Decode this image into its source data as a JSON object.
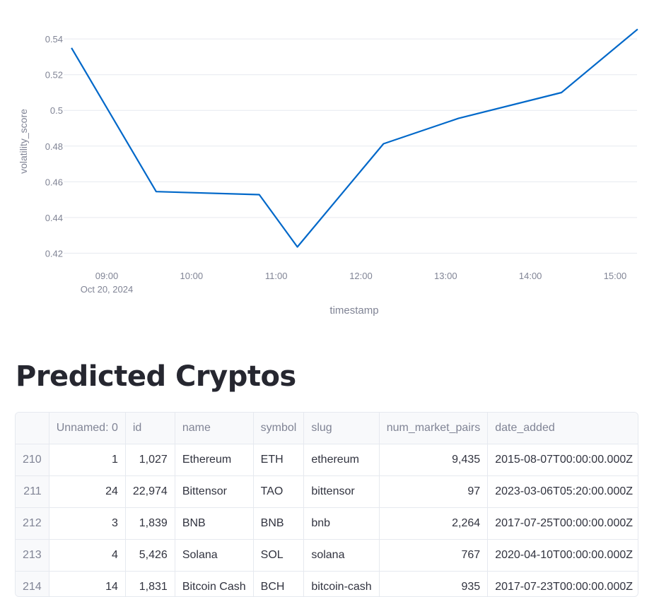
{
  "chart_data": {
    "type": "line",
    "xlabel": "timestamp",
    "ylabel": "volatility_score",
    "x_ticks": [
      "09:00",
      "10:00",
      "11:00",
      "12:00",
      "13:00",
      "14:00",
      "15:00"
    ],
    "x_first_tick_date": "Oct 20, 2024",
    "y_ticks": [
      "0.42",
      "0.44",
      "0.46",
      "0.48",
      "0.5",
      "0.52",
      "0.54"
    ],
    "ylim": [
      0.415,
      0.546
    ],
    "grid": true,
    "line_color": "#0068c9",
    "series": [
      {
        "x": [
          "2024-10-20 08:35",
          "2024-10-20 09:35",
          "2024-10-20 10:48",
          "2024-10-20 10:48",
          "2024-10-20 11:15",
          "2024-10-20 12:16",
          "2024-10-20 13:09",
          "2024-10-20 14:22",
          "2024-10-20 15:16"
        ],
        "y": [
          0.535,
          0.4545,
          0.4528,
          0.4528,
          0.4235,
          0.4813,
          0.4955,
          0.51,
          0.5455
        ]
      }
    ]
  },
  "section_title": "Predicted Cryptos",
  "table": {
    "columns": [
      "",
      "Unnamed: 0",
      "id",
      "name",
      "symbol",
      "slug",
      "num_market_pairs",
      "date_added"
    ],
    "rows": [
      [
        "210",
        "1",
        "1,027",
        "Ethereum",
        "ETH",
        "ethereum",
        "9,435",
        "2015-08-07T00:00:00.000Z"
      ],
      [
        "211",
        "24",
        "22,974",
        "Bittensor",
        "TAO",
        "bittensor",
        "97",
        "2023-03-06T05:20:00.000Z"
      ],
      [
        "212",
        "3",
        "1,839",
        "BNB",
        "BNB",
        "bnb",
        "2,264",
        "2017-07-25T00:00:00.000Z"
      ],
      [
        "213",
        "4",
        "5,426",
        "Solana",
        "SOL",
        "solana",
        "767",
        "2020-04-10T00:00:00.000Z"
      ],
      [
        "214",
        "14",
        "1,831",
        "Bitcoin Cash",
        "BCH",
        "bitcoin-cash",
        "935",
        "2017-07-23T00:00:00.000Z"
      ]
    ]
  }
}
